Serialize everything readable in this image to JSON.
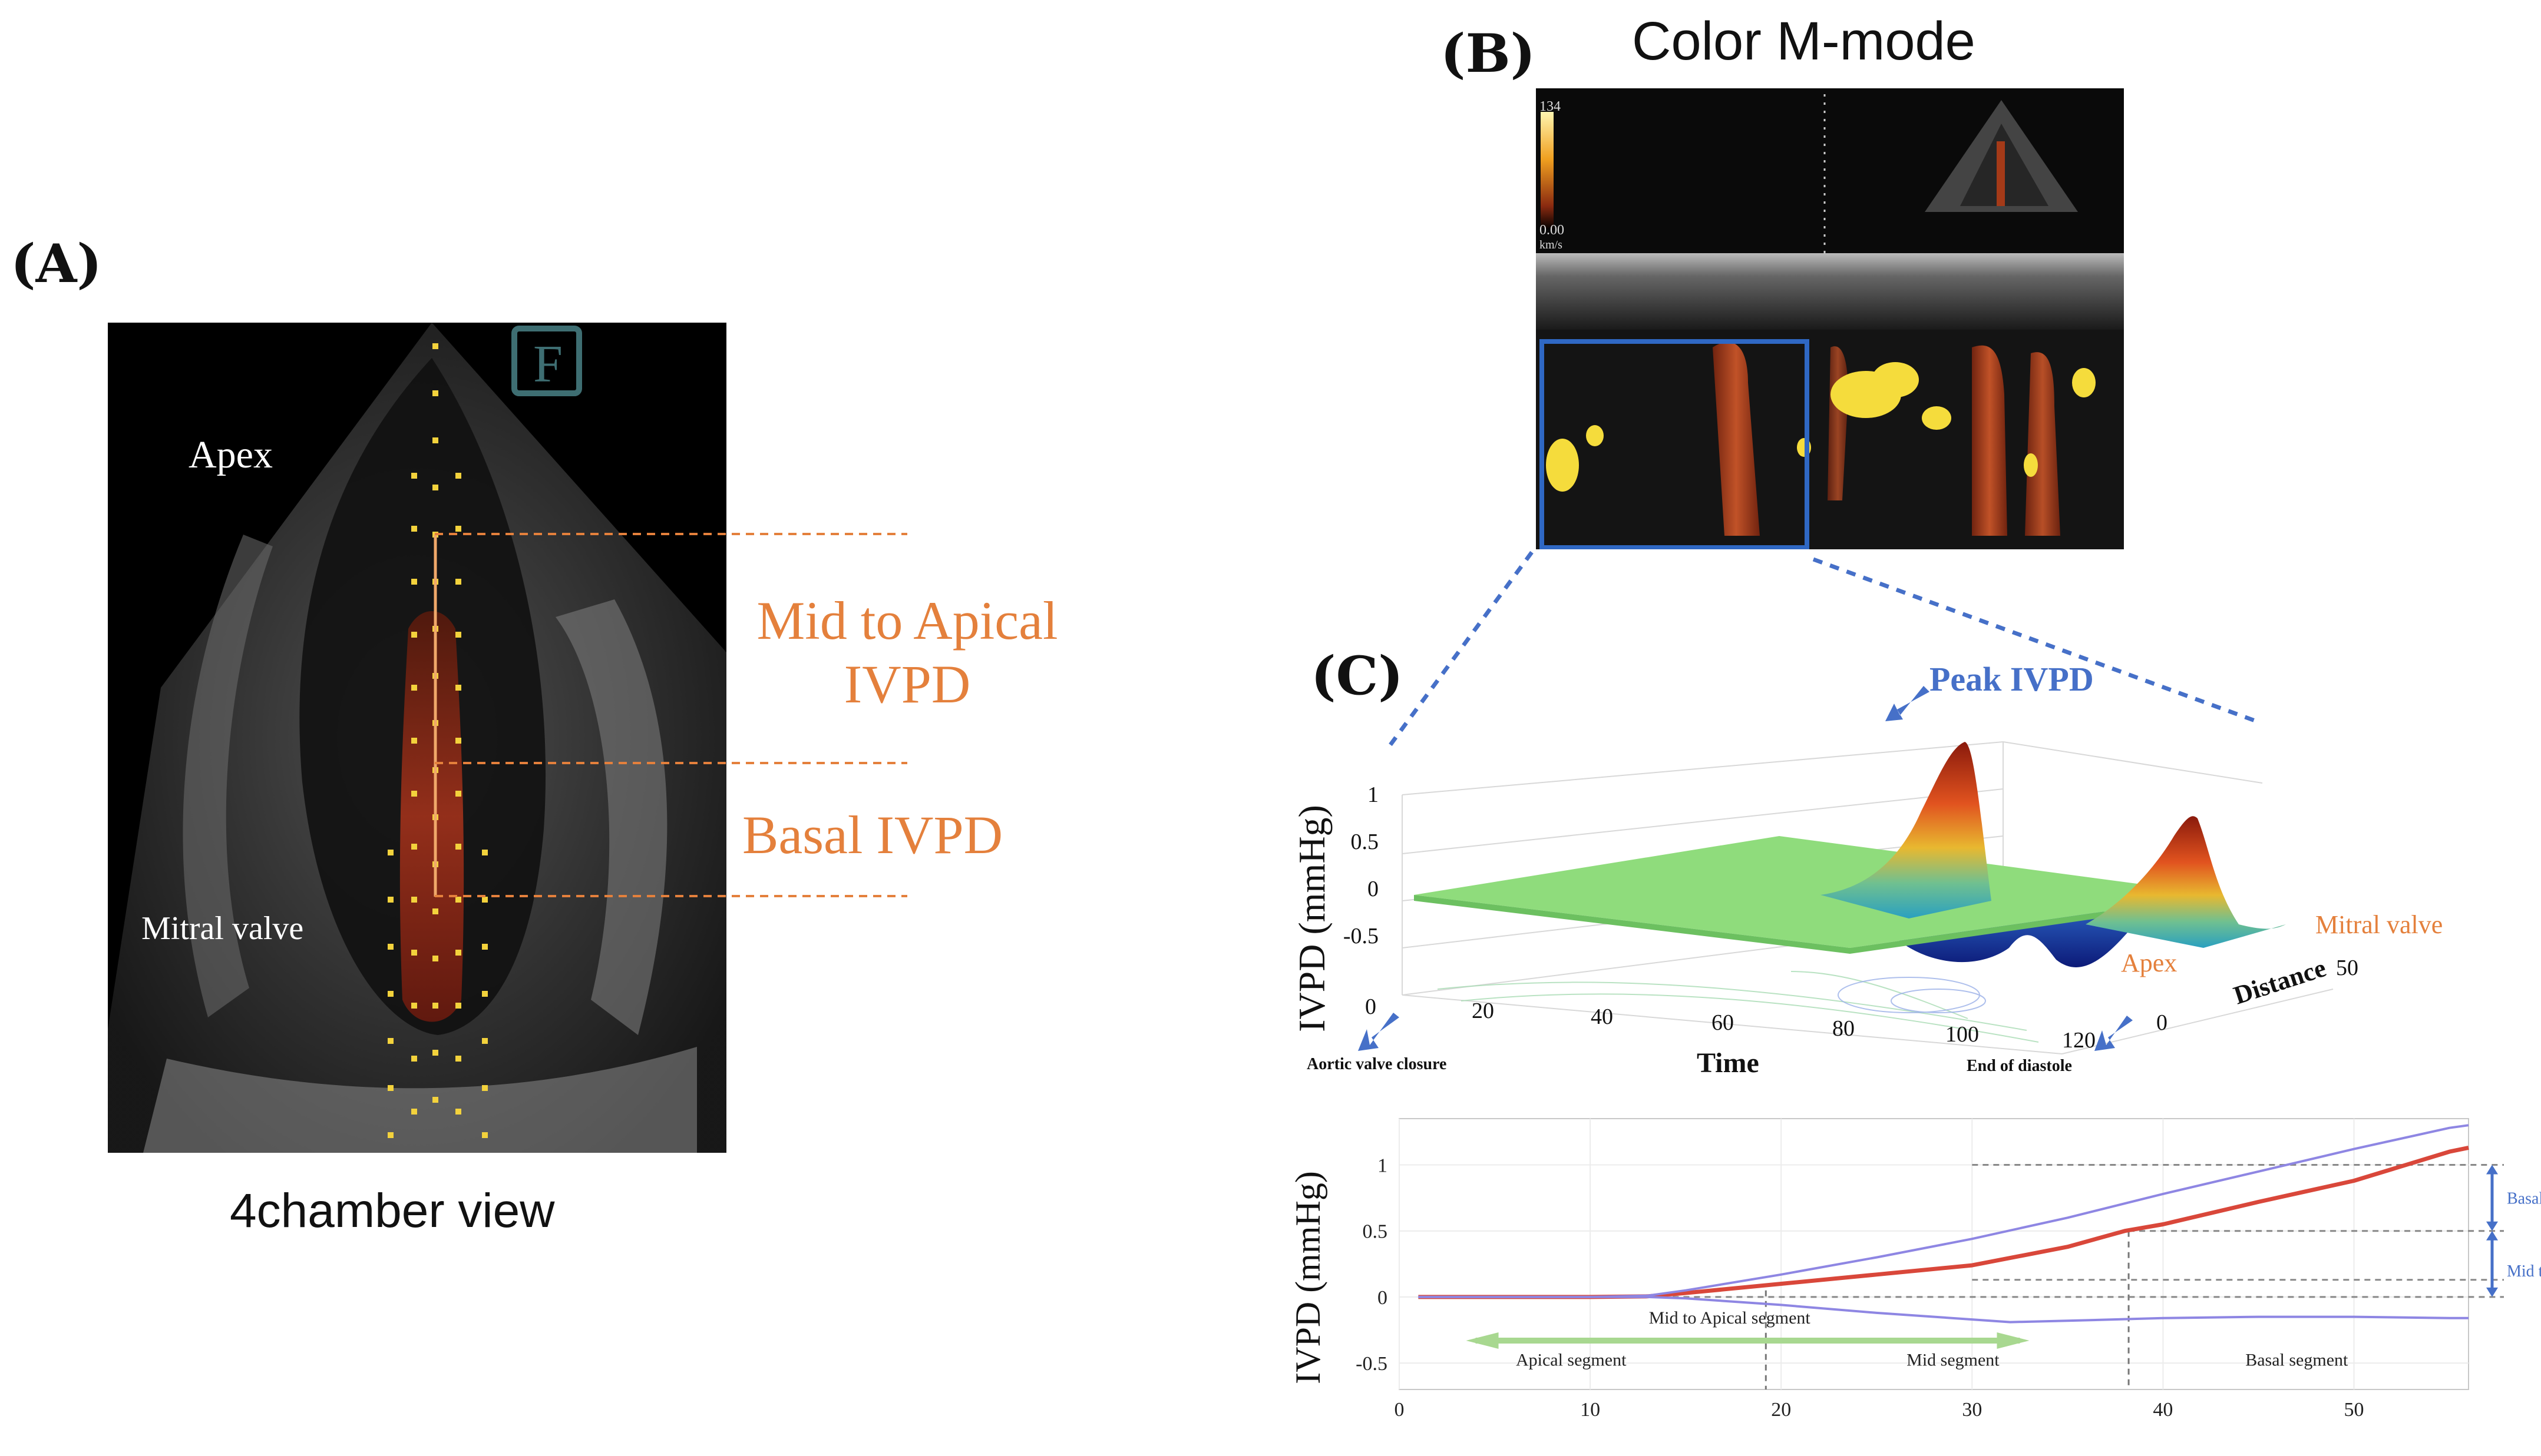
{
  "panelA": {
    "label": "(A)",
    "apex": "Apex",
    "mitral_valve": "Mitral valve",
    "mid_apical_line1": "Mid to Apical",
    "mid_apical_line2": "IVPD",
    "basal": "Basal IVPD",
    "caption": "4chamber view",
    "f_marker": "F"
  },
  "panelB": {
    "label": "(B)",
    "title": "Color M-mode",
    "scale_top": "134",
    "scale_bottom": "0.00",
    "scale_unit": "km/s"
  },
  "panelC": {
    "label": "(C)",
    "peak": "Peak IVPD",
    "ylabel": "IVPD (mmHg)",
    "xlabel": "Time",
    "distance_label": "Distance",
    "apex": "Apex",
    "mitral_valve": "Mitral valve",
    "aortic_valve_closure": "Aortic valve closure",
    "end_of_diastole": "End of diastole",
    "y_ticks": [
      "1",
      "0.5",
      "0",
      "-0.5"
    ],
    "x_ticks": [
      "0",
      "20",
      "40",
      "60",
      "80",
      "100",
      "120"
    ],
    "distance_ticks": [
      "0",
      "50"
    ]
  },
  "chart_data": {
    "type": "line",
    "ylabel": "IVPD (mmHg)",
    "xlim": [
      0,
      56
    ],
    "ylim": [
      -0.7,
      1.35
    ],
    "x_ticks": [
      0,
      10,
      20,
      30,
      40,
      50
    ],
    "y_ticks": [
      -0.5,
      0,
      0.5,
      1
    ],
    "colors": {
      "red": "#d9473a",
      "blue": "#8e86e3"
    },
    "series": [
      {
        "values": [
          [
            1,
            0
          ],
          [
            5,
            0
          ],
          [
            10,
            0
          ],
          [
            13,
            0.005
          ],
          [
            15,
            0.03
          ],
          [
            20,
            0.1
          ],
          [
            25,
            0.17
          ],
          [
            30,
            0.24
          ],
          [
            35,
            0.38
          ],
          [
            38,
            0.5
          ],
          [
            40,
            0.55
          ],
          [
            45,
            0.72
          ],
          [
            50,
            0.88
          ],
          [
            55,
            1.1
          ],
          [
            56,
            1.13
          ]
        ]
      },
      {
        "values": [
          [
            1,
            0
          ],
          [
            5,
            0
          ],
          [
            10,
            0
          ],
          [
            13,
            0.01
          ],
          [
            15,
            0.05
          ],
          [
            20,
            0.17
          ],
          [
            25,
            0.3
          ],
          [
            30,
            0.44
          ],
          [
            35,
            0.6
          ],
          [
            40,
            0.78
          ],
          [
            45,
            0.95
          ],
          [
            50,
            1.12
          ],
          [
            55,
            1.28
          ],
          [
            56,
            1.3
          ]
        ]
      },
      {
        "values": [
          [
            1,
            0
          ],
          [
            5,
            0
          ],
          [
            10,
            0
          ],
          [
            13,
            0
          ],
          [
            15,
            -0.01
          ],
          [
            20,
            -0.06
          ],
          [
            25,
            -0.12
          ],
          [
            30,
            -0.17
          ],
          [
            32,
            -0.19
          ],
          [
            35,
            -0.18
          ],
          [
            40,
            -0.16
          ],
          [
            45,
            -0.15
          ],
          [
            50,
            -0.15
          ],
          [
            55,
            -0.16
          ],
          [
            56,
            -0.16
          ]
        ]
      }
    ],
    "annotations": {
      "mid_apical_segment": "Mid to Apical segment",
      "apical_segment": "Apical segment",
      "mid_segment": "Mid segment",
      "basal_segment": "Basal segment",
      "basal_ivpd": "Basal IVPD",
      "mid_apical_ivpd": "Mid to Apical IVPD"
    },
    "reference_lines": {
      "vertical_x": [
        19.2,
        38.2
      ],
      "horizontal_y": [
        1.0,
        0.5,
        0.13,
        0.0
      ]
    }
  }
}
